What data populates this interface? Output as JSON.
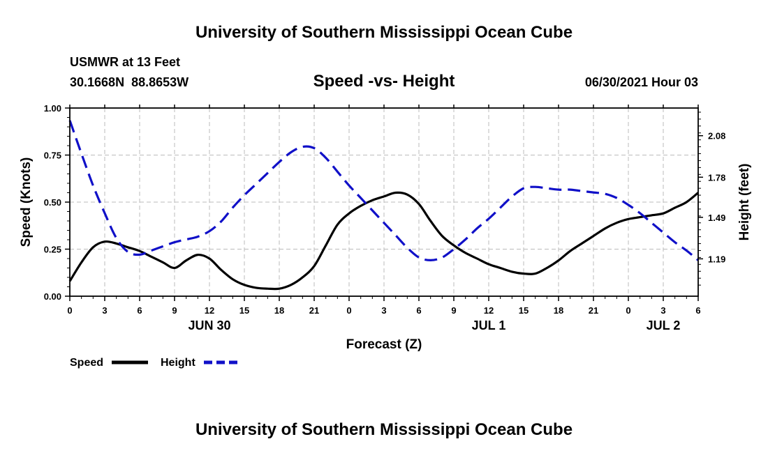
{
  "header": {
    "title": "University of Southern Mississippi Ocean Cube",
    "station": "USMWR at 13 Feet",
    "coords": "30.1668N  88.8653W",
    "plot_title": "Speed -vs- Height",
    "timestamp": "06/30/2021 Hour 03"
  },
  "footer": {
    "title": "University of Southern Mississippi Ocean Cube"
  },
  "legend": {
    "speed_label": "Speed",
    "height_label": "Height"
  },
  "colors": {
    "speed": "#000000",
    "height": "#1010c8",
    "grid": "#bbbbbb"
  },
  "chart_data": {
    "type": "line",
    "title": "Speed -vs- Height",
    "xlabel": "Forecast (Z)",
    "ylabel": "Speed (Knots)",
    "y2label": "Height (feet)",
    "x_ticks": [
      "0",
      "3",
      "6",
      "9",
      "12",
      "15",
      "18",
      "21",
      "0",
      "3",
      "6",
      "9",
      "12",
      "15",
      "18",
      "21",
      "0",
      "3",
      "6"
    ],
    "date_labels": [
      {
        "label": "JUN 30",
        "hour_index": 12
      },
      {
        "label": "JUL 1",
        "hour_index": 36
      },
      {
        "label": "JUL 2",
        "hour_index": 51
      }
    ],
    "xlim": [
      0,
      54
    ],
    "ylim": [
      0,
      1.0
    ],
    "y_ticks": [
      "0.00",
      "0.25",
      "0.50",
      "0.75",
      "1.00"
    ],
    "y2lim": [
      0.92,
      2.28
    ],
    "y2_ticks": [
      "1.19",
      "1.49",
      "1.78",
      "2.08"
    ],
    "grid": true,
    "legend_position": "bottom-left",
    "series": [
      {
        "name": "Speed",
        "axis": "left",
        "style": "solid",
        "x": [
          0,
          1,
          2,
          3,
          4,
          5,
          6,
          7,
          8,
          9,
          10,
          11,
          12,
          13,
          14,
          15,
          16,
          17,
          18,
          19,
          20,
          21,
          22,
          23,
          24,
          25,
          26,
          27,
          28,
          29,
          30,
          31,
          32,
          33,
          34,
          35,
          36,
          37,
          38,
          39,
          40,
          41,
          42,
          43,
          44,
          45,
          46,
          47,
          48,
          49,
          50,
          51,
          52,
          53,
          54
        ],
        "values": [
          0.08,
          0.18,
          0.26,
          0.29,
          0.28,
          0.26,
          0.24,
          0.21,
          0.18,
          0.15,
          0.19,
          0.22,
          0.2,
          0.14,
          0.09,
          0.06,
          0.045,
          0.04,
          0.04,
          0.06,
          0.1,
          0.16,
          0.27,
          0.38,
          0.44,
          0.48,
          0.51,
          0.53,
          0.55,
          0.54,
          0.49,
          0.4,
          0.32,
          0.27,
          0.23,
          0.2,
          0.17,
          0.15,
          0.13,
          0.12,
          0.12,
          0.15,
          0.19,
          0.24,
          0.28,
          0.32,
          0.36,
          0.39,
          0.41,
          0.42,
          0.43,
          0.44,
          0.47,
          0.5,
          0.55
        ]
      },
      {
        "name": "Height",
        "axis": "right",
        "style": "dashed",
        "x": [
          0,
          1,
          2,
          3,
          4,
          5,
          6,
          7,
          8,
          9,
          10,
          11,
          12,
          13,
          14,
          15,
          16,
          17,
          18,
          19,
          20,
          21,
          22,
          23,
          24,
          25,
          26,
          27,
          28,
          29,
          30,
          31,
          32,
          33,
          34,
          35,
          36,
          37,
          38,
          39,
          40,
          41,
          42,
          43,
          44,
          45,
          46,
          47,
          48,
          49,
          50,
          51,
          52,
          53,
          54
        ],
        "values": [
          2.19,
          1.95,
          1.72,
          1.52,
          1.34,
          1.24,
          1.22,
          1.25,
          1.28,
          1.31,
          1.33,
          1.35,
          1.39,
          1.46,
          1.56,
          1.65,
          1.73,
          1.81,
          1.89,
          1.96,
          2.0,
          1.99,
          1.92,
          1.82,
          1.72,
          1.63,
          1.54,
          1.45,
          1.36,
          1.27,
          1.2,
          1.18,
          1.2,
          1.26,
          1.33,
          1.41,
          1.48,
          1.56,
          1.64,
          1.7,
          1.71,
          1.7,
          1.69,
          1.69,
          1.68,
          1.67,
          1.66,
          1.63,
          1.58,
          1.52,
          1.45,
          1.38,
          1.31,
          1.25,
          1.18
        ]
      }
    ]
  }
}
